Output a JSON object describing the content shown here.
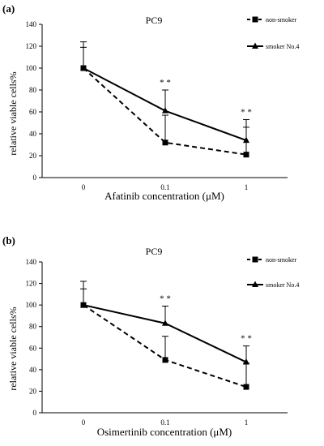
{
  "chart_data": [
    {
      "type": "line",
      "panel_label": "(a)",
      "title": "PC9",
      "xlabel": "Afatinib concentration (μM)",
      "ylabel": "relative viable cells%",
      "categories": [
        "0",
        "0.1",
        "1"
      ],
      "ylim": [
        0,
        140
      ],
      "yticks": [
        0,
        20,
        40,
        60,
        80,
        100,
        120,
        140
      ],
      "grid": false,
      "legend_position": "top-right",
      "significance": [
        "",
        "* *",
        "* *"
      ],
      "series": [
        {
          "name": "non-smoker",
          "style": "dashed",
          "marker": "square",
          "values": [
            100,
            32,
            21
          ],
          "error": [
            19,
            25,
            25
          ]
        },
        {
          "name": "smoker No.4",
          "style": "solid",
          "marker": "triangle",
          "values": [
            100,
            61,
            34
          ],
          "error": [
            24,
            19,
            19
          ]
        }
      ]
    },
    {
      "type": "line",
      "panel_label": "(b)",
      "title": "PC9",
      "xlabel": "Osimertinib concentration (μM)",
      "ylabel": "relative viable cells%",
      "categories": [
        "0",
        "0.1",
        "1"
      ],
      "ylim": [
        0,
        140
      ],
      "yticks": [
        0,
        20,
        40,
        60,
        80,
        100,
        120,
        140
      ],
      "grid": false,
      "legend_position": "top-right",
      "significance": [
        "",
        "* *",
        "* *"
      ],
      "series": [
        {
          "name": "non-smoker",
          "style": "dashed",
          "marker": "square",
          "values": [
            100,
            49,
            24
          ],
          "error": [
            15,
            22,
            22
          ]
        },
        {
          "name": "smoker No.4",
          "style": "solid",
          "marker": "triangle",
          "values": [
            100,
            83,
            47
          ],
          "error": [
            22,
            16,
            15
          ]
        }
      ]
    }
  ],
  "colors": {
    "line": "#000000",
    "axis": "#000000",
    "background": "#ffffff"
  }
}
